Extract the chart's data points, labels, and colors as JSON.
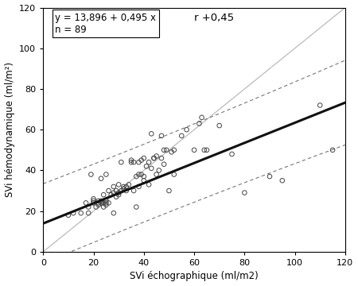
{
  "title": "",
  "xlabel": "SVi échographique (ml/m2)",
  "ylabel": "SVi hémodynamique (ml/m²)",
  "equation_text": "y = 13,896 + 0,495 x",
  "n_text": "n = 89",
  "r_text": "r +0,45",
  "intercept": 13.896,
  "slope": 0.495,
  "xlim": [
    0,
    120
  ],
  "ylim": [
    0,
    120
  ],
  "xticks": [
    0,
    20,
    40,
    60,
    80,
    100,
    120
  ],
  "yticks": [
    0,
    20,
    40,
    60,
    80,
    100,
    120
  ],
  "scatter_color": "none",
  "scatter_edgecolor": "#444444",
  "regression_color": "#111111",
  "identity_color": "#bbbbbb",
  "ci_color": "#777777",
  "scatter_x": [
    10,
    12,
    15,
    17,
    18,
    18,
    19,
    20,
    20,
    20,
    21,
    22,
    22,
    22,
    23,
    23,
    23,
    24,
    24,
    24,
    25,
    25,
    25,
    25,
    26,
    26,
    27,
    28,
    28,
    28,
    29,
    29,
    30,
    30,
    30,
    31,
    31,
    32,
    32,
    33,
    33,
    34,
    35,
    35,
    36,
    36,
    37,
    37,
    38,
    38,
    38,
    39,
    39,
    40,
    40,
    40,
    41,
    42,
    42,
    43,
    43,
    44,
    44,
    45,
    45,
    46,
    47,
    47,
    48,
    48,
    49,
    50,
    51,
    52,
    52,
    55,
    57,
    60,
    62,
    63,
    64,
    65,
    70,
    75,
    80,
    90,
    95,
    110,
    115
  ],
  "scatter_y": [
    18,
    19,
    19,
    24,
    19,
    22,
    38,
    24,
    25,
    26,
    22,
    23,
    24,
    25,
    24,
    25,
    36,
    22,
    24,
    28,
    23,
    24,
    25,
    38,
    24,
    30,
    28,
    19,
    29,
    32,
    27,
    30,
    28,
    29,
    33,
    30,
    44,
    31,
    32,
    30,
    32,
    33,
    44,
    45,
    30,
    44,
    22,
    37,
    32,
    38,
    44,
    38,
    45,
    35,
    37,
    46,
    42,
    33,
    44,
    41,
    58,
    46,
    46,
    38,
    47,
    40,
    46,
    57,
    43,
    50,
    50,
    30,
    49,
    38,
    50,
    57,
    60,
    50,
    63,
    66,
    50,
    50,
    62,
    48,
    29,
    37,
    35,
    72,
    50
  ],
  "figwidth": 4.5,
  "figheight": 3.6,
  "dpi": 100
}
